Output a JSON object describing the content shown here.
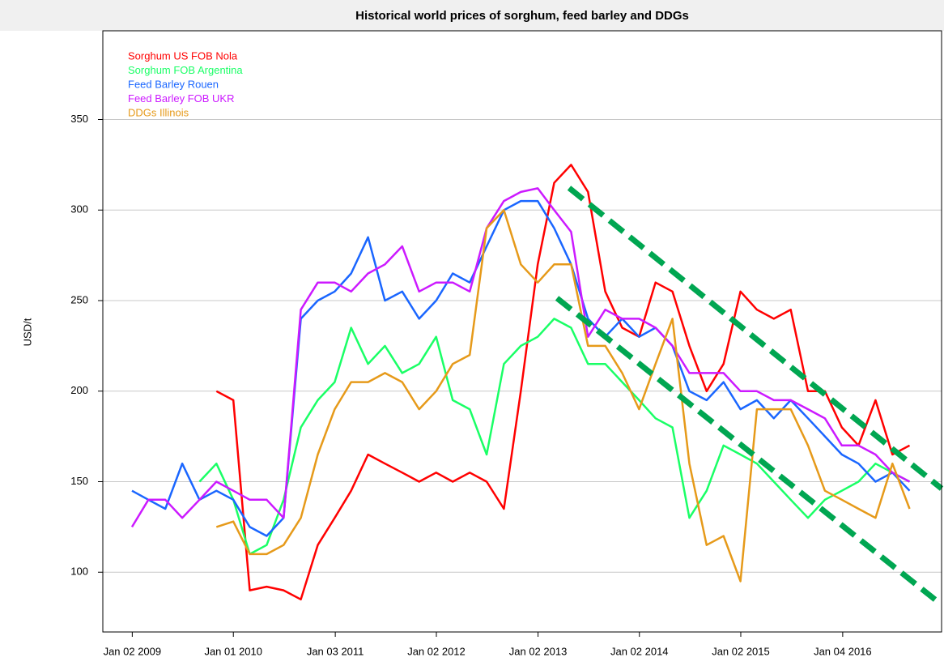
{
  "chart_data": {
    "type": "line",
    "title": "Historical world prices of sorghum, feed barley and DDGs",
    "y_label": "USD/t",
    "x": [
      "2009-01-01",
      "2009-03-01",
      "2009-05-01",
      "2009-07-01",
      "2009-09-01",
      "2009-11-01",
      "2010-01-01",
      "2010-03-01",
      "2010-05-01",
      "2010-07-01",
      "2010-09-01",
      "2010-11-01",
      "2011-01-01",
      "2011-03-01",
      "2011-05-01",
      "2011-07-01",
      "2011-09-01",
      "2011-11-01",
      "2012-01-01",
      "2012-03-01",
      "2012-05-01",
      "2012-07-01",
      "2012-09-01",
      "2012-11-01",
      "2013-01-01",
      "2013-03-01",
      "2013-05-01",
      "2013-07-01",
      "2013-09-01",
      "2013-11-01",
      "2014-01-01",
      "2014-03-01",
      "2014-05-01",
      "2014-07-01",
      "2014-09-01",
      "2014-11-01",
      "2015-01-01",
      "2015-03-01",
      "2015-05-01",
      "2015-07-01",
      "2015-09-01",
      "2015-11-01",
      "2016-01-01",
      "2016-03-01",
      "2016-05-01",
      "2016-07-01",
      "2016-09-01"
    ],
    "series": [
      {
        "name": "Sorghum US FOB Nola",
        "color": "#ff0000",
        "values": [
          null,
          null,
          null,
          null,
          null,
          200,
          195,
          90,
          92,
          90,
          85,
          115,
          130,
          145,
          165,
          160,
          155,
          150,
          155,
          150,
          155,
          150,
          135,
          200,
          270,
          315,
          325,
          310,
          255,
          235,
          230,
          260,
          255,
          225,
          200,
          215,
          255,
          245,
          240,
          245,
          200,
          200,
          180,
          170,
          195,
          165,
          170
        ]
      },
      {
        "name": "Sorghum FOB Argentina",
        "color": "#1aff66",
        "values": [
          null,
          null,
          null,
          null,
          150,
          160,
          140,
          110,
          115,
          140,
          180,
          195,
          205,
          235,
          215,
          225,
          210,
          215,
          230,
          195,
          190,
          165,
          215,
          225,
          230,
          240,
          235,
          215,
          215,
          205,
          195,
          185,
          180,
          130,
          145,
          170,
          165,
          160,
          150,
          140,
          130,
          140,
          145,
          150,
          160,
          155,
          150
        ]
      },
      {
        "name": "Feed Barley Rouen",
        "color": "#1a66ff",
        "values": [
          145,
          140,
          135,
          160,
          140,
          145,
          140,
          125,
          120,
          130,
          240,
          250,
          255,
          265,
          285,
          250,
          255,
          240,
          250,
          265,
          260,
          280,
          300,
          305,
          305,
          290,
          270,
          240,
          230,
          240,
          230,
          235,
          225,
          200,
          195,
          205,
          190,
          195,
          185,
          195,
          185,
          175,
          165,
          160,
          150,
          155,
          145
        ]
      },
      {
        "name": "Feed Barley FOB UKR",
        "color": "#cc1aff",
        "values": [
          125,
          140,
          140,
          130,
          140,
          150,
          145,
          140,
          140,
          130,
          245,
          260,
          260,
          255,
          265,
          270,
          280,
          255,
          260,
          260,
          255,
          290,
          305,
          310,
          312,
          300,
          288,
          230,
          245,
          240,
          240,
          235,
          225,
          210,
          210,
          210,
          200,
          200,
          195,
          195,
          190,
          185,
          170,
          170,
          165,
          155,
          150
        ]
      },
      {
        "name": "DDGs Illinois",
        "color": "#e69a1a",
        "values": [
          null,
          null,
          null,
          null,
          null,
          125,
          128,
          110,
          110,
          115,
          130,
          165,
          190,
          205,
          205,
          210,
          205,
          190,
          200,
          215,
          220,
          290,
          300,
          270,
          260,
          270,
          270,
          225,
          225,
          210,
          190,
          215,
          240,
          160,
          115,
          120,
          95,
          190,
          190,
          190,
          170,
          145,
          140,
          135,
          130,
          160,
          135
        ]
      }
    ],
    "xlim": [
      "2008-09-18",
      "2016-12-25"
    ],
    "xticks": [
      {
        "value": "2009-01-02",
        "label": "Jan 02 2009"
      },
      {
        "value": "2010-01-01",
        "label": "Jan 01 2010"
      },
      {
        "value": "2011-01-03",
        "label": "Jan 03 2011"
      },
      {
        "value": "2012-01-02",
        "label": "Jan 02 2012"
      },
      {
        "value": "2013-01-02",
        "label": "Jan 02 2013"
      },
      {
        "value": "2014-01-02",
        "label": "Jan 02 2014"
      },
      {
        "value": "2015-01-02",
        "label": "Jan 02 2015"
      },
      {
        "value": "2016-01-04",
        "label": "Jan 04 2016"
      }
    ],
    "ylim": [
      67,
      399
    ],
    "yticks": [
      100,
      150,
      200,
      250,
      300,
      350
    ],
    "grid": true,
    "legend": "top-left"
  }
}
